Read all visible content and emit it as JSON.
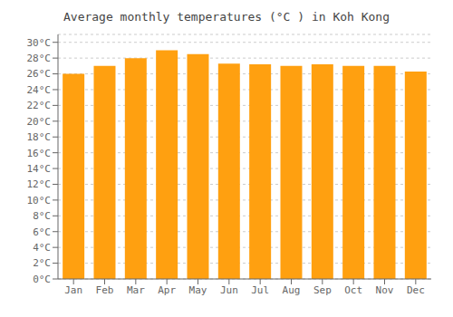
{
  "chart_data": {
    "type": "bar",
    "title": "Average monthly temperatures (°C ) in Koh Kong",
    "categories": [
      "Jan",
      "Feb",
      "Mar",
      "Apr",
      "May",
      "Jun",
      "Jul",
      "Aug",
      "Sep",
      "Oct",
      "Nov",
      "Dec"
    ],
    "values": [
      26.0,
      27.0,
      28.0,
      29.0,
      28.5,
      27.3,
      27.2,
      27.0,
      27.2,
      27.0,
      27.0,
      26.3
    ],
    "color": "#FFA010",
    "ylim": [
      0,
      31
    ],
    "yticks": [
      {
        "value": 0,
        "label": "0°C"
      },
      {
        "value": 2,
        "label": "2°C"
      },
      {
        "value": 4,
        "label": "4°C"
      },
      {
        "value": 6,
        "label": "6°C"
      },
      {
        "value": 8,
        "label": "8°C"
      },
      {
        "value": 10,
        "label": "10°C"
      },
      {
        "value": 12,
        "label": "12°C"
      },
      {
        "value": 14,
        "label": "14°C"
      },
      {
        "value": 16,
        "label": "16°C"
      },
      {
        "value": 18,
        "label": "18°C"
      },
      {
        "value": 20,
        "label": "20°C"
      },
      {
        "value": 22,
        "label": "22°C"
      },
      {
        "value": 24,
        "label": "24°C"
      },
      {
        "value": 26,
        "label": "26°C"
      },
      {
        "value": 28,
        "label": "28°C"
      },
      {
        "value": 30,
        "label": "30°C"
      }
    ],
    "grid": true
  }
}
